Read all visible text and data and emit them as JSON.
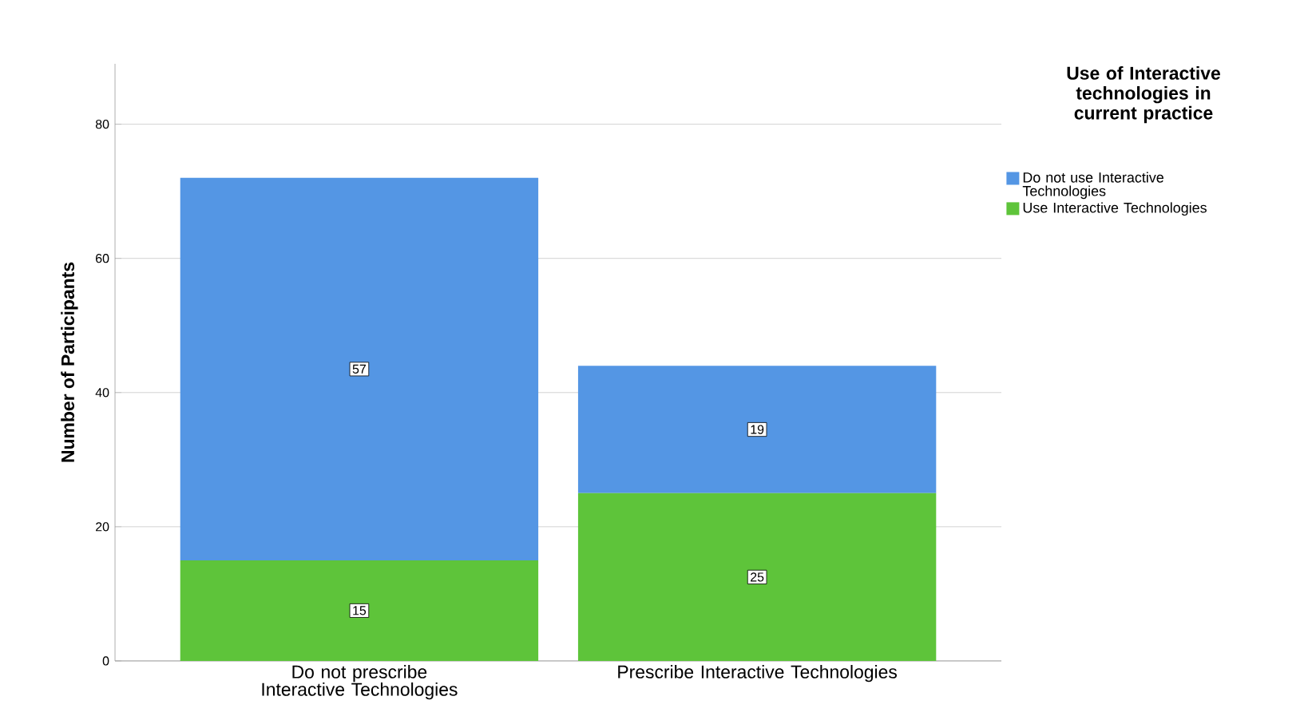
{
  "chart_data": {
    "type": "bar",
    "stacked": true,
    "categories": [
      "Do not prescribe Interactive Technologies",
      "Prescribe Interactive Technologies"
    ],
    "series": [
      {
        "name": "Use Interactive Technologies",
        "color": "#5ec43a",
        "values": [
          15,
          25
        ]
      },
      {
        "name": "Do not use Interactive Technologies",
        "color": "#5496e4",
        "values": [
          57,
          19
        ]
      }
    ],
    "ylabel": "Number of Participants",
    "legend_title": "Use of Interactive technologies in current practice",
    "ylim": [
      0,
      89
    ],
    "yticks": [
      0,
      20,
      40,
      60,
      80
    ],
    "grid": "y",
    "legend": "top right",
    "data_labels": true
  }
}
